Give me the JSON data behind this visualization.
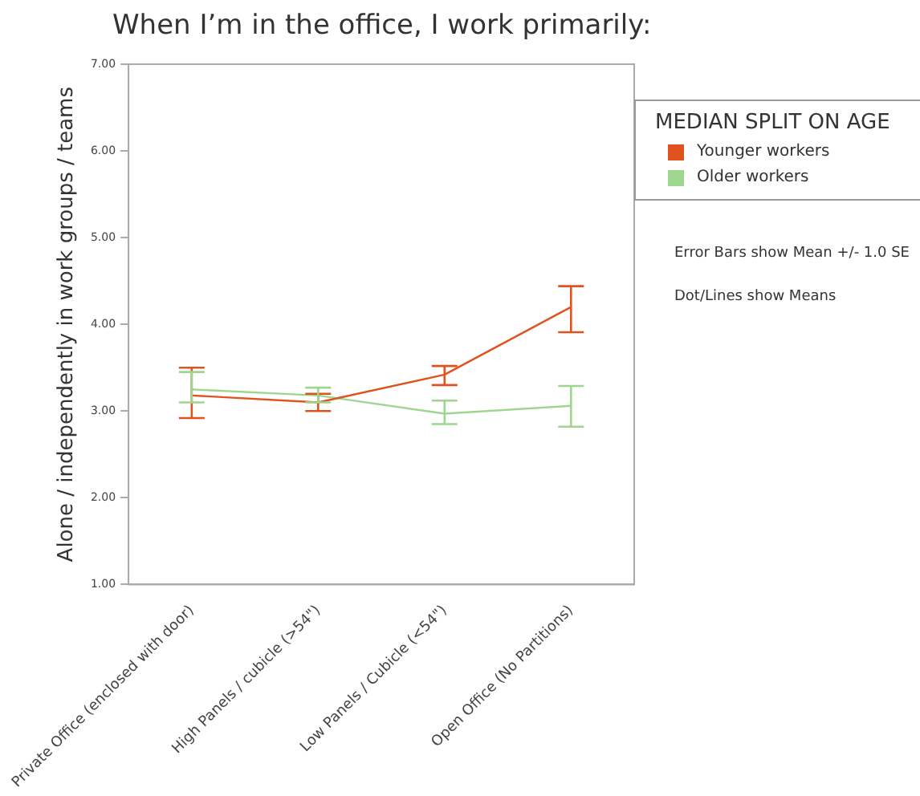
{
  "chart_data": {
    "type": "line",
    "title": "When I’m in the office, I work primarily:",
    "ylabel": "Alone / independently in work groups / teams",
    "legend_title": "MEDIAN SPLIT ON AGE",
    "legend": "top right",
    "categories": [
      "Private Office (enclosed with door)",
      "High Panels / cubicle (>54\")",
      "Low Panels / Cubicle (<54\")",
      "Open Office (No Partitions)"
    ],
    "series": [
      {
        "name": "Younger workers",
        "color": "#e0521e",
        "values": [
          3.18,
          3.1,
          3.42,
          4.2
        ],
        "errors": [
          [
            2.92,
            3.5
          ],
          [
            3.0,
            3.2
          ],
          [
            3.3,
            3.52
          ],
          [
            3.91,
            4.44
          ]
        ]
      },
      {
        "name": "Older workers",
        "color": "#9fd68f",
        "values": [
          3.25,
          3.18,
          2.97,
          3.06
        ],
        "errors": [
          [
            3.1,
            3.45
          ],
          [
            3.1,
            3.27
          ],
          [
            2.85,
            3.12
          ],
          [
            2.82,
            3.29
          ]
        ]
      }
    ],
    "ylim": [
      1,
      7
    ],
    "yticks": [
      {
        "value": 1,
        "label": "1.00"
      },
      {
        "value": 2,
        "label": "2.00"
      },
      {
        "value": 3,
        "label": "3.00"
      },
      {
        "value": 4,
        "label": "4.00"
      },
      {
        "value": 5,
        "label": "5.00"
      },
      {
        "value": 6,
        "label": "6.00"
      },
      {
        "value": 7,
        "label": "7.00"
      }
    ],
    "grid": false,
    "line_style": "solid",
    "annotations": [
      "Error Bars show Mean +/- 1.0 SE",
      "Dot/Lines show Means"
    ]
  }
}
